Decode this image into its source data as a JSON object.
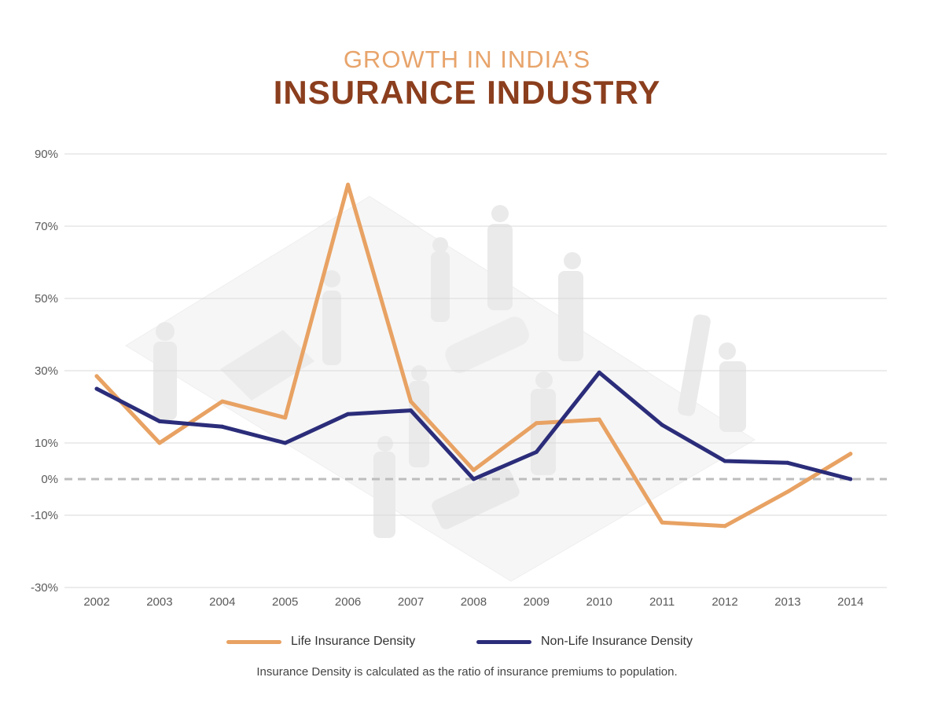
{
  "header": {
    "subtitle": "GROWTH IN INDIA’S",
    "title": "INSURANCE INDUSTRY"
  },
  "footnote": "Insurance Density is calculated as the ratio of insurance premiums to population.",
  "colors": {
    "life": "#e8a263",
    "non_life": "#2b2d7a",
    "subtitle": "#e8a46b",
    "title": "#8b3e1d",
    "grid": "#d9d9d9",
    "zero_line": "#bdbdbd"
  },
  "chart_data": {
    "type": "line",
    "title": "GROWTH IN INDIA’S INSURANCE INDUSTRY",
    "xlabel": "",
    "ylabel": "",
    "x": [
      "2002",
      "2003",
      "2004",
      "2005",
      "2006",
      "2007",
      "2008",
      "2009",
      "2010",
      "2011",
      "2012",
      "2013",
      "2014"
    ],
    "yticks": [
      90,
      70,
      50,
      30,
      10,
      0,
      -10,
      -30
    ],
    "ytick_labels": [
      "90%",
      "70%",
      "50%",
      "30%",
      "10%",
      "0%",
      "-10%",
      "-30%"
    ],
    "ylim": [
      -30,
      90
    ],
    "grid": true,
    "zero_line": "dashed",
    "legend_position": "bottom",
    "series": [
      {
        "name": "Life Insurance Density",
        "color": "#e8a263",
        "values": [
          28.5,
          10,
          21.5,
          17,
          81.5,
          21.5,
          2.5,
          15.5,
          16.5,
          -12,
          -13,
          -3.5,
          7
        ]
      },
      {
        "name": "Non-Life Insurance Density",
        "color": "#2b2d7a",
        "values": [
          25,
          16,
          14.5,
          10,
          18,
          19,
          0,
          7.5,
          29.5,
          15,
          5,
          4.5,
          0
        ]
      }
    ]
  }
}
